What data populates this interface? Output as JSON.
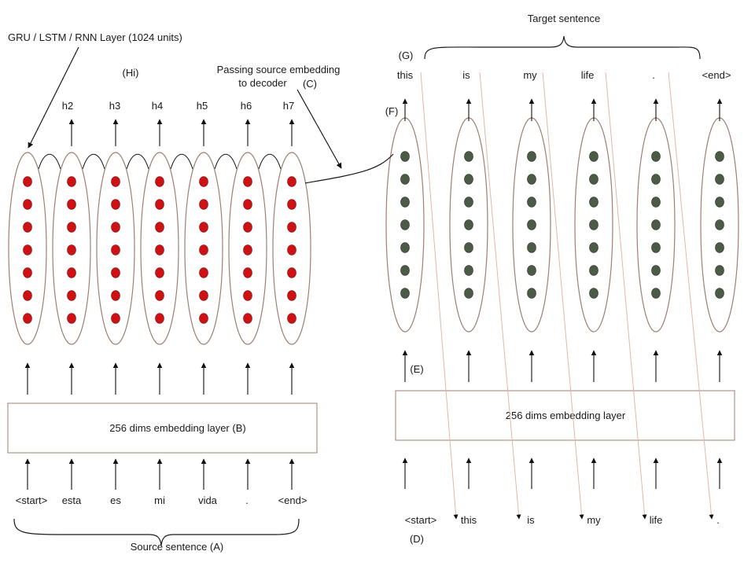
{
  "labels": {
    "rnn_layer": "GRU / LSTM / RNN Layer (1024 units)",
    "hidden": "(Hi)",
    "passing_line1": "Passing source embedding",
    "passing_line2": "to decoder",
    "passing_marker": "(C)",
    "target_sentence": "Target sentence",
    "target_marker": "(G)",
    "cell_marker": "(F)",
    "emb_marker": "(E)",
    "decoder_input_marker": "(D)",
    "source_sentence": "Source sentence (A)"
  },
  "encoder": {
    "hidden_states": [
      "h2",
      "h3",
      "h4",
      "h5",
      "h6",
      "h7"
    ],
    "embedding_label": "256 dims embedding layer  (B)",
    "inputs": [
      "<start>",
      "esta",
      "es",
      "mi",
      "vida",
      ".",
      "<end>"
    ]
  },
  "decoder": {
    "outputs": [
      "this",
      "is",
      "my",
      "life",
      ".",
      "<end>"
    ],
    "embedding_label": "256 dims embedding layer",
    "inputs": [
      "<start>",
      "this",
      "is",
      "my",
      "life",
      "."
    ]
  },
  "colors": {
    "encoder_unit": "#cc1212",
    "decoder_unit": "#4c5b46",
    "cell_outline": "#a07e73",
    "teacher_forcing_line": "#e3b7a6"
  }
}
